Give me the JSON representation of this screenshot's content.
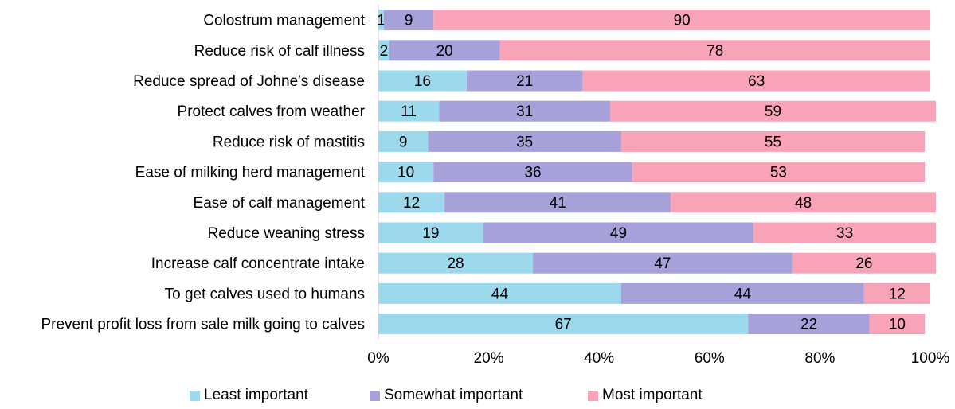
{
  "chart_data": {
    "type": "bar",
    "orientation": "horizontal",
    "stacked": true,
    "percent": true,
    "categories": [
      "Colostrum management",
      "Reduce risk of calf illness",
      "Reduce spread of Johne′s disease",
      "Protect calves from weather",
      "Reduce risk of mastitis",
      "Ease of milking herd management",
      "Ease of calf management",
      "Reduce weaning stress",
      "Increase calf concentrate intake",
      "To get calves used to humans",
      "Prevent profit loss from sale milk going to calves"
    ],
    "series": [
      {
        "name": "Least important",
        "color": "#9DD9EC",
        "values": [
          1,
          2,
          16,
          11,
          9,
          10,
          12,
          19,
          28,
          44,
          67
        ]
      },
      {
        "name": "Somewhat important",
        "color": "#A6A1D8",
        "values": [
          9,
          20,
          21,
          31,
          35,
          36,
          41,
          49,
          47,
          44,
          22
        ]
      },
      {
        "name": "Most important",
        "color": "#F8A3B8",
        "values": [
          90,
          78,
          63,
          59,
          55,
          53,
          48,
          33,
          26,
          12,
          10
        ]
      }
    ],
    "xticks": [
      "0%",
      "20%",
      "40%",
      "60%",
      "80%",
      "100%"
    ],
    "xlim": [
      0,
      100
    ],
    "title": "",
    "xlabel": "",
    "ylabel": "",
    "legend_position": "bottom"
  }
}
